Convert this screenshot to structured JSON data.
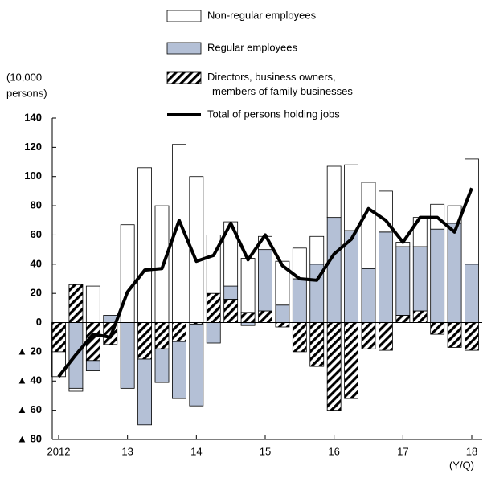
{
  "chart_data": {
    "type": "bar",
    "stacked": true,
    "y_label": [
      "(10,000",
      "persons)"
    ],
    "x_label": "(Y/Q)",
    "categories": [
      "2012",
      null,
      null,
      null,
      "13",
      null,
      null,
      null,
      "14",
      null,
      null,
      null,
      "15",
      null,
      null,
      null,
      "16",
      null,
      null,
      null,
      "17",
      null,
      null,
      null,
      "18"
    ],
    "series": [
      {
        "name": "Non-regular employees",
        "color": "#ffffff",
        "values": [
          -17,
          -2,
          25,
          0,
          67,
          106,
          80,
          122,
          100,
          40,
          44,
          37,
          9,
          30,
          21,
          19,
          35,
          45,
          59,
          28,
          3,
          20,
          17,
          12,
          72
        ]
      },
      {
        "name": "Regular employees",
        "color": "#b4c0d6",
        "values": [
          0,
          -45,
          -7,
          5,
          -45,
          -45,
          -23,
          -39,
          -56,
          -14,
          9,
          -2,
          42,
          12,
          30,
          40,
          72,
          63,
          37,
          62,
          47,
          44,
          64,
          68,
          40
        ]
      },
      {
        "name": "Directors, business owners, members of family businesses",
        "color": "#000000",
        "pattern": "hatch",
        "values": [
          -20,
          26,
          -26,
          -15,
          0,
          -25,
          -18,
          -13,
          -1,
          20,
          16,
          7,
          8,
          -3,
          -20,
          -30,
          -60,
          -52,
          -18,
          -19,
          5,
          8,
          -8,
          -17,
          -19
        ]
      },
      {
        "name": "Total of persons holding jobs",
        "type": "line",
        "color": "#000000",
        "values": [
          -37,
          -22,
          -8,
          -10,
          21,
          36,
          37,
          70,
          42,
          46,
          68,
          43,
          60,
          39,
          30,
          29,
          47,
          57,
          78,
          70,
          55,
          72,
          72,
          62,
          92
        ]
      }
    ],
    "ylim": [
      -80,
      140
    ],
    "yticks": [
      {
        "value": -80,
        "label": "▲ 80"
      },
      {
        "value": -60,
        "label": "▲ 60"
      },
      {
        "value": -40,
        "label": "▲ 40"
      },
      {
        "value": -20,
        "label": "▲ 20"
      },
      0,
      20,
      40,
      60,
      80,
      100,
      120,
      140
    ],
    "grid": false
  }
}
